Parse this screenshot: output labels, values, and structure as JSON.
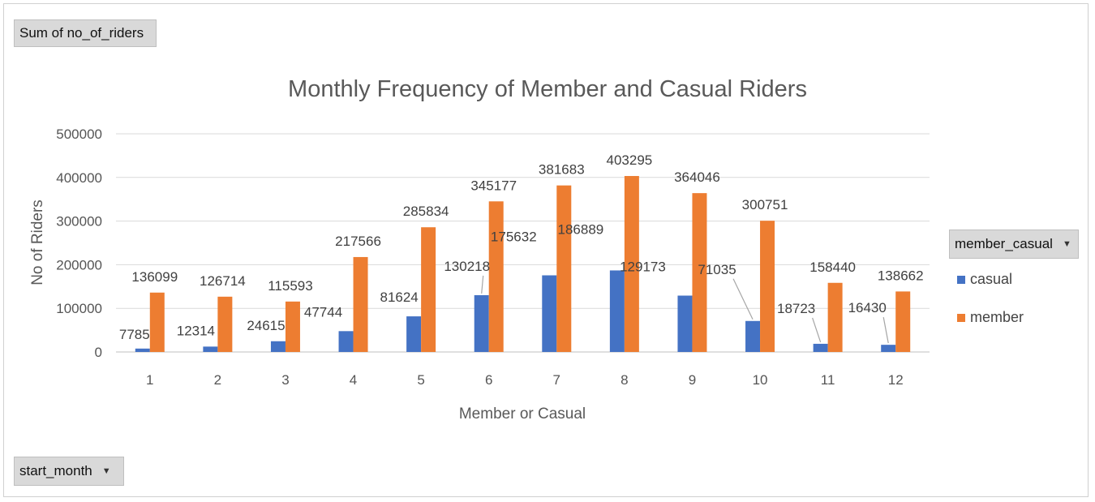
{
  "pivot": {
    "value_field": "Sum of no_of_riders",
    "axis_field": "start_month",
    "legend_field": "member_casual"
  },
  "colors": {
    "casual": "#4472c4",
    "member": "#ed7d31"
  },
  "chart_data": {
    "type": "bar",
    "title": "Monthly Frequency of Member and Casual Riders",
    "xlabel": "Member or Casual",
    "ylabel": "No of Riders",
    "ylim": [
      0,
      500000
    ],
    "yticks": [
      "0",
      "100000",
      "200000",
      "300000",
      "400000",
      "500000"
    ],
    "grid": true,
    "legend_position": "right",
    "categories": [
      "1",
      "2",
      "3",
      "4",
      "5",
      "6",
      "7",
      "8",
      "9",
      "10",
      "11",
      "12"
    ],
    "series": [
      {
        "name": "casual",
        "values": [
          7785,
          12314,
          24615,
          47744,
          81624,
          130218,
          175632,
          186889,
          129173,
          71035,
          18723,
          16430
        ]
      },
      {
        "name": "member",
        "values": [
          136099,
          126714,
          115593,
          217566,
          285834,
          345177,
          381683,
          403295,
          364046,
          300751,
          158440,
          138662
        ]
      }
    ]
  }
}
